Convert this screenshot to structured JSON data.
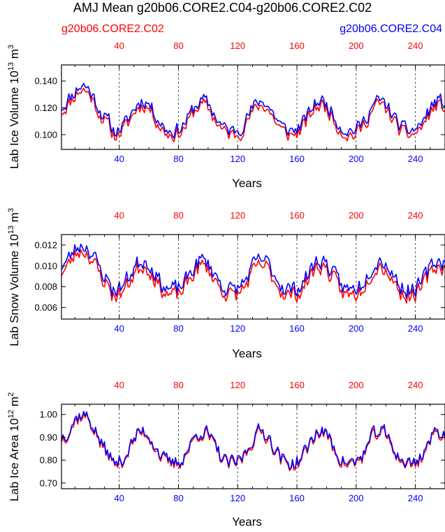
{
  "title": "AMJ Mean g20b06.CORE2.C04-g20b06.CORE2.C02",
  "legend": {
    "left": "g20b06.CORE2.C02",
    "right": "g20b06.CORE2.C04"
  },
  "colors": {
    "c02": "#ff0000",
    "c04": "#0000ff",
    "axis": "#000000",
    "grid": "#555555"
  },
  "chart_data": [
    {
      "type": "line",
      "ylabel_main": "Lab Ice Volume 10",
      "ylabel_exp": "13",
      "ylabel_unit": " m",
      "ylabel_unit_exp": "3",
      "xlabel": "Years",
      "xlim": [
        1,
        260
      ],
      "ylim": [
        0.089,
        0.152
      ],
      "yticks": [
        "0.100",
        "0.120",
        "0.140"
      ],
      "ytick_values": [
        0.1,
        0.12,
        0.14
      ],
      "xticks": [
        "40",
        "80",
        "120",
        "160",
        "200",
        "240"
      ],
      "xtick_values": [
        40,
        80,
        120,
        160,
        200,
        240
      ],
      "vlines": [
        40,
        80,
        120,
        160,
        200,
        240
      ],
      "series": [
        {
          "name": "g20b06.CORE2.C02",
          "color": "#ff0000",
          "base": 0.1,
          "amp": 0.022,
          "noise": 0.0075,
          "seed": 11,
          "offset": 0.0
        },
        {
          "name": "g20b06.CORE2.C04",
          "color": "#0000ff",
          "base": 0.1,
          "amp": 0.022,
          "noise": 0.0075,
          "seed": 11,
          "offset": 0.0032
        }
      ]
    },
    {
      "type": "line",
      "ylabel_main": "Lab Snow Volume 10",
      "ylabel_exp": "13",
      "ylabel_unit": " m",
      "ylabel_unit_exp": "3",
      "xlabel": "Years",
      "xlim": [
        1,
        260
      ],
      "ylim": [
        0.0049,
        0.013
      ],
      "yticks": [
        "0.006",
        "0.008",
        "0.010",
        "0.012"
      ],
      "ytick_values": [
        0.006,
        0.008,
        0.01,
        0.012
      ],
      "xticks": [
        "40",
        "80",
        "120",
        "160",
        "200",
        "240"
      ],
      "xtick_values": [
        40,
        80,
        120,
        160,
        200,
        240
      ],
      "vlines": [
        40,
        80,
        120,
        160,
        200,
        240
      ],
      "series": [
        {
          "name": "g20b06.CORE2.C02",
          "color": "#ff0000",
          "base": 0.0072,
          "amp": 0.0028,
          "noise": 0.0011,
          "seed": 23,
          "offset": 0.0
        },
        {
          "name": "g20b06.CORE2.C04",
          "color": "#0000ff",
          "base": 0.0072,
          "amp": 0.0028,
          "noise": 0.0011,
          "seed": 23,
          "offset": 0.00055
        }
      ]
    },
    {
      "type": "line",
      "ylabel_main": "Lab Ice Area 10",
      "ylabel_exp": "12",
      "ylabel_unit": " m",
      "ylabel_unit_exp": "2",
      "xlabel": "Years",
      "xlim": [
        1,
        260
      ],
      "ylim": [
        0.675,
        1.045
      ],
      "yticks": [
        "0.70",
        "0.80",
        "0.90",
        "1.00"
      ],
      "ytick_values": [
        0.7,
        0.8,
        0.9,
        1.0
      ],
      "xticks": [
        "40",
        "80",
        "120",
        "160",
        "200",
        "240"
      ],
      "xtick_values": [
        40,
        80,
        120,
        160,
        200,
        240
      ],
      "vlines": [
        40,
        80,
        120,
        160,
        200,
        240
      ],
      "series": [
        {
          "name": "g20b06.CORE2.C02",
          "color": "#ff0000",
          "base": 0.78,
          "amp": 0.14,
          "noise": 0.045,
          "seed": 37,
          "offset": 0.0
        },
        {
          "name": "g20b06.CORE2.C04",
          "color": "#0000ff",
          "base": 0.78,
          "amp": 0.14,
          "noise": 0.045,
          "seed": 37,
          "offset": 0.008
        }
      ]
    }
  ]
}
